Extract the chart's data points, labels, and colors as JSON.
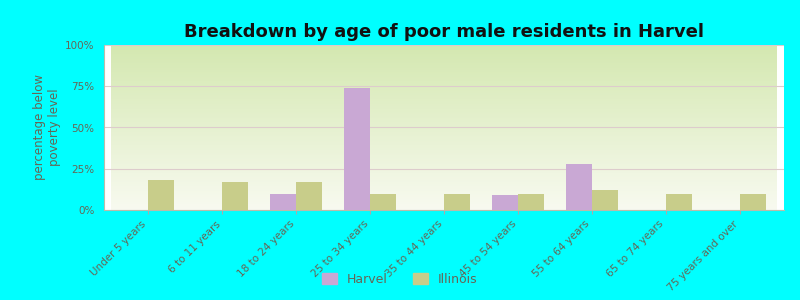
{
  "title": "Breakdown by age of poor male residents in Harvel",
  "ylabel": "percentage below\npoverty level",
  "categories": [
    "Under 5 years",
    "6 to 11 years",
    "18 to 24 years",
    "25 to 34 years",
    "35 to 44 years",
    "45 to 54 years",
    "55 to 64 years",
    "65 to 74 years",
    "75 years and over"
  ],
  "harvel": [
    0,
    0,
    10,
    74,
    0,
    9,
    28,
    0,
    0
  ],
  "illinois": [
    18,
    17,
    17,
    10,
    10,
    10,
    12,
    10,
    10
  ],
  "harvel_color": "#c9a8d4",
  "illinois_color": "#c8cd8a",
  "outer_bg": "#00ffff",
  "ylim": [
    0,
    100
  ],
  "yticks": [
    0,
    25,
    50,
    75,
    100
  ],
  "ytick_labels": [
    "0%",
    "25%",
    "50%",
    "75%",
    "100%"
  ],
  "bar_width": 0.35,
  "title_fontsize": 13,
  "axis_label_fontsize": 8.5,
  "tick_fontsize": 7.5,
  "legend_fontsize": 9,
  "grid_color": "#ddcccc",
  "text_color": "#666655"
}
